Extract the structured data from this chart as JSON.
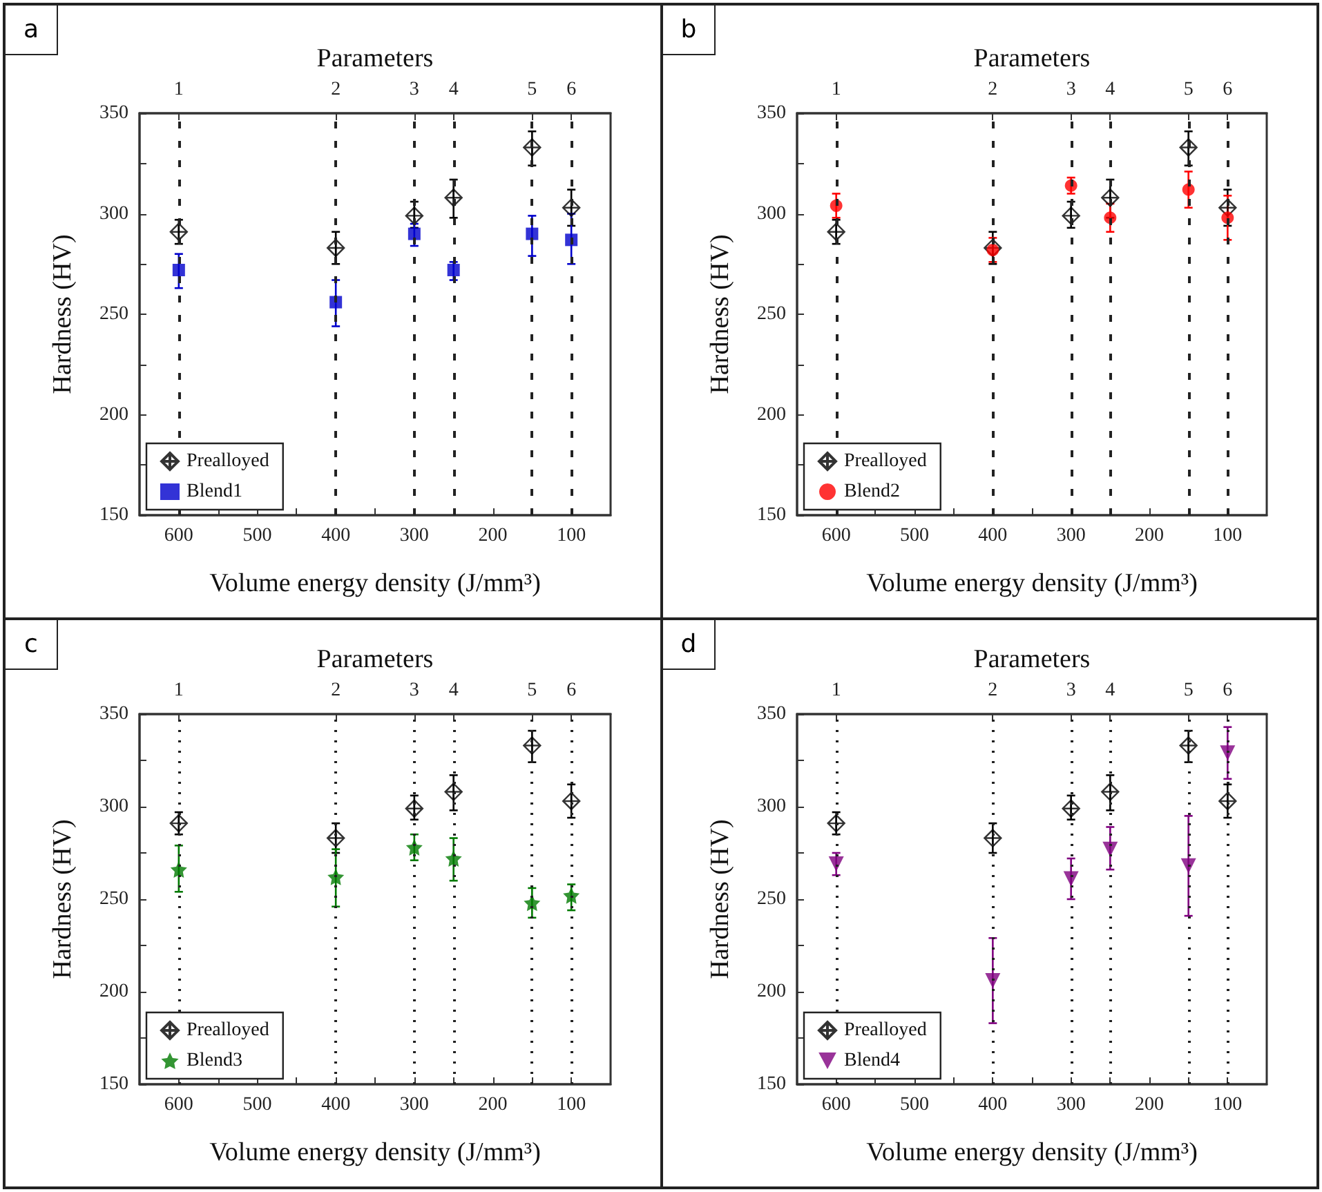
{
  "chart_data": [
    {
      "type": "scatter",
      "annotations": [
        "a",
        {
          "text": "1",
          "x": 600
        },
        {
          "text": "2",
          "x": 400
        },
        {
          "text": "3",
          "x": 300
        },
        {
          "text": "4",
          "x": 250
        },
        {
          "text": "5",
          "x": 150
        },
        {
          "text": "6",
          "x": 100
        }
      ],
      "xlabel": "Volume energy density (J/mm³)",
      "ylabel": "Hardness (HV)",
      "x2label": "Parameters",
      "legend": "bottom left",
      "xlim": [
        650,
        50
      ],
      "xticks": [
        600,
        {
          "value": 550,
          "label": null
        },
        500,
        {
          "value": 450,
          "label": null
        },
        400,
        {
          "value": 350,
          "label": null
        },
        300,
        {
          "value": 250,
          "label": null
        },
        200,
        {
          "value": 150,
          "label": null
        },
        100
      ],
      "ylim": [
        150,
        350
      ],
      "yticks": [
        150,
        {
          "value": 175,
          "label": null
        },
        200,
        {
          "value": 225,
          "label": null
        },
        250,
        {
          "value": 275,
          "label": null
        },
        300,
        {
          "value": 325,
          "label": null
        },
        350
      ],
      "ref_lines": [
        {
          "axis": "x",
          "value": 600,
          "line_style": "dashed"
        },
        {
          "axis": "x",
          "value": 400,
          "line_style": "dashed"
        },
        {
          "axis": "x",
          "value": 300,
          "line_style": "dashed"
        },
        {
          "axis": "x",
          "value": 250,
          "line_style": "dashed"
        },
        {
          "axis": "x",
          "value": 150,
          "line_style": "dashed"
        },
        {
          "axis": "x",
          "value": 100,
          "line_style": "dashed"
        }
      ],
      "x": [
        600,
        400,
        300,
        250,
        150,
        100
      ],
      "series": [
        {
          "name": "Prealloyed",
          "color": "#000000",
          "marker": "cross",
          "values": [
            291,
            283,
            299,
            308,
            333,
            303
          ],
          "errors": [
            [
              285,
              297
            ],
            [
              275,
              291
            ],
            [
              293,
              306
            ],
            [
              298,
              317
            ],
            [
              324,
              341
            ],
            [
              294,
              312
            ]
          ]
        },
        {
          "name": "Blend1",
          "color": "#0000cc",
          "marker": "square",
          "values": [
            272,
            256,
            290,
            272,
            290,
            287
          ],
          "errors": [
            [
              263,
              280
            ],
            [
              244,
              267
            ],
            [
              284,
              295
            ],
            [
              267,
              276
            ],
            [
              279,
              299
            ],
            [
              275,
              300
            ]
          ]
        }
      ]
    },
    {
      "type": "scatter",
      "annotations": [
        "b",
        {
          "text": "1",
          "x": 600
        },
        {
          "text": "2",
          "x": 400
        },
        {
          "text": "3",
          "x": 300
        },
        {
          "text": "4",
          "x": 250
        },
        {
          "text": "5",
          "x": 150
        },
        {
          "text": "6",
          "x": 100
        }
      ],
      "xlabel": "Volume energy density (J/mm³)",
      "ylabel": "Hardness (HV)",
      "x2label": "Parameters",
      "legend": "bottom left",
      "xlim": [
        650,
        50
      ],
      "xticks": [
        600,
        {
          "value": 550,
          "label": null
        },
        500,
        {
          "value": 450,
          "label": null
        },
        400,
        {
          "value": 350,
          "label": null
        },
        300,
        {
          "value": 250,
          "label": null
        },
        200,
        {
          "value": 150,
          "label": null
        },
        100
      ],
      "ylim": [
        150,
        350
      ],
      "yticks": [
        150,
        {
          "value": 175,
          "label": null
        },
        200,
        {
          "value": 225,
          "label": null
        },
        250,
        {
          "value": 275,
          "label": null
        },
        300,
        {
          "value": 325,
          "label": null
        },
        350
      ],
      "ref_lines": [
        {
          "axis": "x",
          "value": 600,
          "line_style": "dashed"
        },
        {
          "axis": "x",
          "value": 400,
          "line_style": "dashed"
        },
        {
          "axis": "x",
          "value": 300,
          "line_style": "dashed"
        },
        {
          "axis": "x",
          "value": 250,
          "line_style": "dashed"
        },
        {
          "axis": "x",
          "value": 150,
          "line_style": "dashed"
        },
        {
          "axis": "x",
          "value": 100,
          "line_style": "dashed"
        }
      ],
      "x": [
        600,
        400,
        300,
        250,
        150,
        100
      ],
      "series": [
        {
          "name": "Prealloyed",
          "color": "#000000",
          "marker": "cross",
          "values": [
            291,
            283,
            299,
            308,
            333,
            303
          ],
          "errors": [
            [
              285,
              297
            ],
            [
              275,
              291
            ],
            [
              293,
              306
            ],
            [
              298,
              317
            ],
            [
              324,
              341
            ],
            [
              294,
              312
            ]
          ]
        },
        {
          "name": "Blend2",
          "color": "#ff0000",
          "marker": "circle",
          "values": [
            304,
            282,
            314,
            298,
            312,
            298
          ],
          "errors": [
            [
              298,
              310
            ],
            [
              276,
              288
            ],
            [
              310,
              318
            ],
            [
              291,
              305
            ],
            [
              303,
              321
            ],
            [
              287,
              309
            ]
          ]
        }
      ]
    },
    {
      "type": "scatter",
      "annotations": [
        "c",
        {
          "text": "1",
          "x": 600
        },
        {
          "text": "2",
          "x": 400
        },
        {
          "text": "3",
          "x": 300
        },
        {
          "text": "4",
          "x": 250
        },
        {
          "text": "5",
          "x": 150
        },
        {
          "text": "6",
          "x": 100
        }
      ],
      "xlabel": "Volume energy density (J/mm³)",
      "ylabel": "Hardness (HV)",
      "x2label": "Parameters",
      "legend": "bottom left",
      "xlim": [
        650,
        50
      ],
      "xticks": [
        600,
        {
          "value": 550,
          "label": null
        },
        500,
        {
          "value": 450,
          "label": null
        },
        400,
        {
          "value": 350,
          "label": null
        },
        300,
        {
          "value": 250,
          "label": null
        },
        200,
        {
          "value": 150,
          "label": null
        },
        100
      ],
      "ylim": [
        150,
        350
      ],
      "yticks": [
        150,
        {
          "value": 175,
          "label": null
        },
        200,
        {
          "value": 225,
          "label": null
        },
        250,
        {
          "value": 275,
          "label": null
        },
        300,
        {
          "value": 325,
          "label": null
        },
        350
      ],
      "ref_lines": [
        {
          "axis": "x",
          "value": 600,
          "line_style": "dotted"
        },
        {
          "axis": "x",
          "value": 400,
          "line_style": "dotted"
        },
        {
          "axis": "x",
          "value": 300,
          "line_style": "dotted"
        },
        {
          "axis": "x",
          "value": 250,
          "line_style": "dotted"
        },
        {
          "axis": "x",
          "value": 150,
          "line_style": "dotted"
        },
        {
          "axis": "x",
          "value": 100,
          "line_style": "dotted"
        }
      ],
      "x": [
        600,
        400,
        300,
        250,
        150,
        100
      ],
      "series": [
        {
          "name": "Prealloyed",
          "color": "#000000",
          "marker": "cross",
          "values": [
            291,
            283,
            299,
            308,
            333,
            303
          ],
          "errors": [
            [
              285,
              297
            ],
            [
              275,
              291
            ],
            [
              293,
              306
            ],
            [
              298,
              317
            ],
            [
              324,
              341
            ],
            [
              294,
              312
            ]
          ]
        },
        {
          "name": "Blend3",
          "color": "#007a00",
          "marker": "star",
          "values": [
            266,
            262,
            278,
            272,
            248,
            252
          ],
          "errors": [
            [
              254,
              279
            ],
            [
              246,
              277
            ],
            [
              271,
              285
            ],
            [
              260,
              283
            ],
            [
              240,
              256
            ],
            [
              244,
              258
            ]
          ]
        }
      ]
    },
    {
      "type": "scatter",
      "annotations": [
        "d",
        {
          "text": "1",
          "x": 600
        },
        {
          "text": "2",
          "x": 400
        },
        {
          "text": "3",
          "x": 300
        },
        {
          "text": "4",
          "x": 250
        },
        {
          "text": "5",
          "x": 150
        },
        {
          "text": "6",
          "x": 100
        }
      ],
      "xlabel": "Volume energy density (J/mm³)",
      "ylabel": "Hardness (HV)",
      "x2label": "Parameters",
      "legend": "bottom left",
      "xlim": [
        650,
        50
      ],
      "xticks": [
        600,
        {
          "value": 550,
          "label": null
        },
        500,
        {
          "value": 450,
          "label": null
        },
        400,
        {
          "value": 350,
          "label": null
        },
        300,
        {
          "value": 250,
          "label": null
        },
        200,
        {
          "value": 150,
          "label": null
        },
        100
      ],
      "ylim": [
        150,
        350
      ],
      "yticks": [
        150,
        {
          "value": 175,
          "label": null
        },
        200,
        {
          "value": 225,
          "label": null
        },
        250,
        {
          "value": 275,
          "label": null
        },
        300,
        {
          "value": 325,
          "label": null
        },
        350
      ],
      "ref_lines": [
        {
          "axis": "x",
          "value": 600,
          "line_style": "dotted"
        },
        {
          "axis": "x",
          "value": 400,
          "line_style": "dotted"
        },
        {
          "axis": "x",
          "value": 300,
          "line_style": "dotted"
        },
        {
          "axis": "x",
          "value": 250,
          "line_style": "dotted"
        },
        {
          "axis": "x",
          "value": 150,
          "line_style": "dotted"
        },
        {
          "axis": "x",
          "value": 100,
          "line_style": "dotted"
        }
      ],
      "x": [
        600,
        400,
        300,
        250,
        150,
        100
      ],
      "series": [
        {
          "name": "Prealloyed",
          "color": "#000000",
          "marker": "cross",
          "values": [
            291,
            283,
            299,
            308,
            333,
            303
          ],
          "errors": [
            [
              285,
              297
            ],
            [
              275,
              291
            ],
            [
              293,
              306
            ],
            [
              298,
              317
            ],
            [
              324,
              341
            ],
            [
              294,
              312
            ]
          ]
        },
        {
          "name": "Blend4",
          "color": "#800080",
          "marker": "triangle",
          "values": [
            269,
            206,
            261,
            277,
            268,
            329
          ],
          "errors": [
            [
              263,
              275
            ],
            [
              183,
              229
            ],
            [
              250,
              272
            ],
            [
              266,
              289
            ],
            [
              241,
              295
            ],
            [
              315,
              343
            ]
          ]
        }
      ]
    }
  ]
}
